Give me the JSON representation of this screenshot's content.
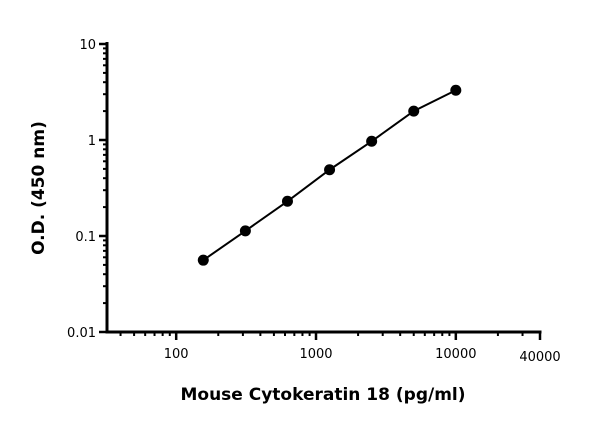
{
  "chart_data": {
    "type": "line",
    "title": "",
    "xlabel": "Mouse Cytokeratin 18 (pg/ml)",
    "ylabel": "O.D. (450 nm)",
    "x_scale": "log",
    "y_scale": "log",
    "xlim": [
      32,
      40000
    ],
    "ylim": [
      0.01,
      10
    ],
    "x_ticks": [
      "100",
      "1000",
      "10000",
      "40000"
    ],
    "x_tick_values": [
      100,
      1000,
      10000,
      40000
    ],
    "y_ticks": [
      "0.01",
      "0.1",
      "1",
      "10"
    ],
    "y_tick_values": [
      0.01,
      0.1,
      1,
      10
    ],
    "grid": false,
    "series": [
      {
        "x": [
          156.25,
          312.5,
          625,
          1250,
          2500,
          5000,
          10000
        ],
        "y": [
          0.056,
          0.113,
          0.23,
          0.49,
          0.97,
          2.0,
          3.3
        ],
        "color": "#000000",
        "marker": "circle"
      }
    ]
  }
}
